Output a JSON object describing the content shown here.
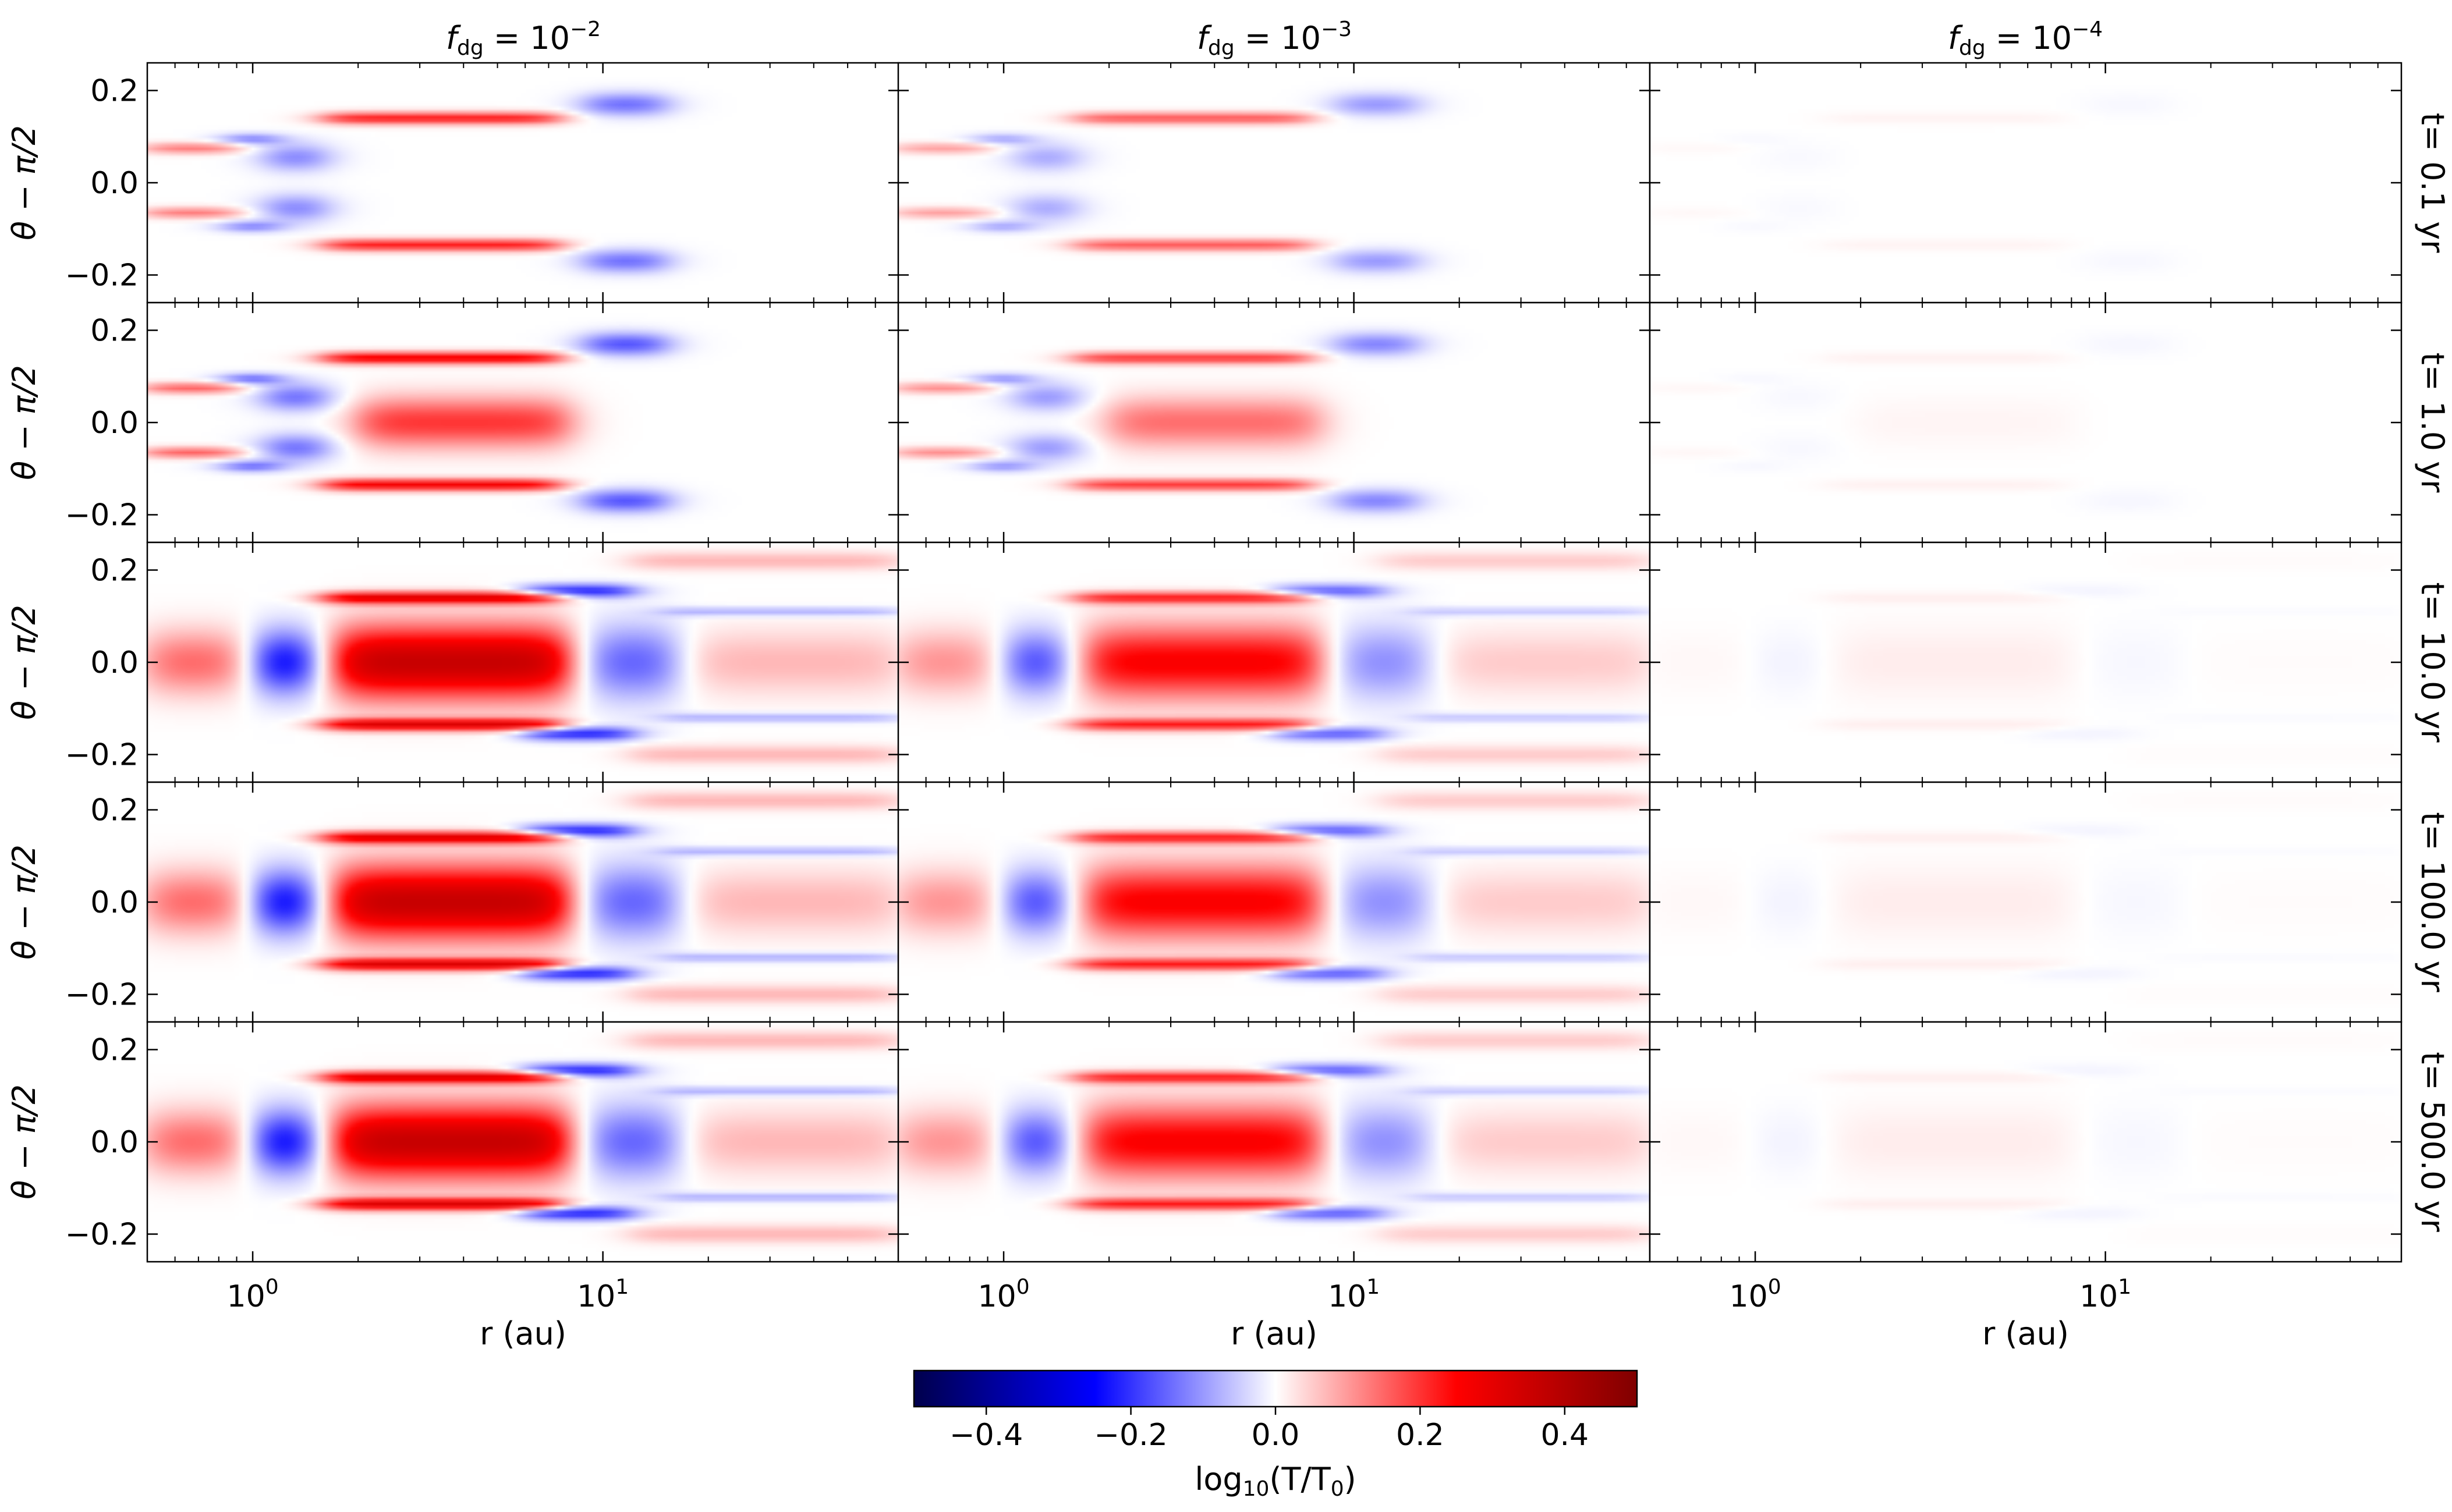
{
  "chart_data": {
    "type": "heatmap",
    "layout": "5 rows x 3 columns grid of log-r vs theta maps sharing axes",
    "columns": [
      {
        "title_base": "f",
        "title_sub": "dg",
        "title_eq": " = 10",
        "title_exp": "−2",
        "fdg": 0.01
      },
      {
        "title_base": "f",
        "title_sub": "dg",
        "title_eq": " = 10",
        "title_exp": "−3",
        "fdg": 0.001
      },
      {
        "title_base": "f",
        "title_sub": "dg",
        "title_eq": " = 10",
        "title_exp": "−4",
        "fdg": 0.0001
      }
    ],
    "rows": [
      {
        "label": "t= 0.1 yr",
        "t_yr": 0.1
      },
      {
        "label": "t= 1.0 yr",
        "t_yr": 1.0
      },
      {
        "label": "t= 10.0 yr",
        "t_yr": 10.0
      },
      {
        "label": "t= 100.0 yr",
        "t_yr": 100.0
      },
      {
        "label": "t= 500.0 yr",
        "t_yr": 500.0
      }
    ],
    "xaxis": {
      "label": "r (au)",
      "scale": "log",
      "range_au": [
        0.5,
        70
      ],
      "major_ticks": [
        {
          "value": 1,
          "base": "10",
          "exp": "0"
        },
        {
          "value": 10,
          "base": "10",
          "exp": "1"
        }
      ]
    },
    "yaxis": {
      "label": "θ − π/2",
      "range": [
        -0.26,
        0.26
      ],
      "ticks": [
        0.2,
        0.0,
        -0.2
      ],
      "tick_labels": [
        "0.2",
        "0.0",
        "−0.2"
      ]
    },
    "colorbar": {
      "cmap": "seismic",
      "range": [
        -0.5,
        0.5
      ],
      "ticks": [
        -0.4,
        -0.2,
        0.0,
        0.2,
        0.4
      ],
      "tick_labels": [
        "−0.4",
        "−0.2",
        "0.0",
        "0.2",
        "0.4"
      ],
      "label_prefix": "log",
      "label_sub": "10",
      "label_body": "(T/T",
      "label_sub2": "0",
      "label_suffix": ")"
    },
    "features_description": "Estimated structures in log10(T/T0): warm (red) bands near the midplane between ~2 and ~9 au and warm surface layers at |theta-pi/2|~0.12-0.15, cool (blue) features near 1-1.5 au and around 10-15 au; amplitudes scale down strongly with f_dg and grow with time.",
    "feature_amplitude_scale": {
      "col_scale": [
        1.0,
        0.72,
        0.05
      ],
      "row_scale": [
        0.75,
        0.9,
        1.0,
        1.0,
        1.0
      ]
    },
    "features": [
      {
        "r0": 0.5,
        "r1": 0.9,
        "th": 0.075,
        "w": 0.012,
        "amp": 0.18,
        "rows": [
          0,
          1
        ]
      },
      {
        "r0": 0.5,
        "r1": 0.9,
        "th": -0.065,
        "w": 0.012,
        "amp": 0.18,
        "rows": [
          0,
          1
        ]
      },
      {
        "r0": 0.85,
        "r1": 1.15,
        "th": 0.095,
        "w": 0.012,
        "amp": -0.2,
        "rows": [
          0,
          1
        ]
      },
      {
        "r0": 0.85,
        "r1": 1.15,
        "th": -0.095,
        "w": 0.012,
        "amp": -0.2,
        "rows": [
          0,
          1
        ]
      },
      {
        "r0": 1.1,
        "r1": 1.6,
        "th": 0.055,
        "w": 0.03,
        "amp": -0.18,
        "rows": [
          0,
          1
        ]
      },
      {
        "r0": 1.1,
        "r1": 1.6,
        "th": -0.055,
        "w": 0.03,
        "amp": -0.18,
        "rows": [
          0,
          1
        ]
      },
      {
        "r0": 1.6,
        "r1": 7.5,
        "th": 0.14,
        "w": 0.013,
        "amp": 0.3,
        "rows": [
          0,
          1,
          2,
          3,
          4
        ]
      },
      {
        "r0": 1.6,
        "r1": 7.5,
        "th": -0.135,
        "w": 0.013,
        "amp": 0.3,
        "rows": [
          0,
          1,
          2,
          3,
          4
        ]
      },
      {
        "r0": 9,
        "r1": 15,
        "th": 0.17,
        "w": 0.025,
        "amp": -0.2,
        "rows": [
          0,
          1
        ]
      },
      {
        "r0": 9,
        "r1": 15,
        "th": -0.17,
        "w": 0.025,
        "amp": -0.2,
        "rows": [
          0,
          1
        ]
      },
      {
        "r0": 2,
        "r1": 8,
        "th": 0.0,
        "w": 0.055,
        "amp": 0.22,
        "rows": [
          1
        ]
      },
      {
        "r0": 0.5,
        "r1": 1.0,
        "th": 0.0,
        "w": 0.07,
        "amp": 0.15,
        "rows": [
          2,
          3,
          4
        ]
      },
      {
        "r0": 1.0,
        "r1": 1.5,
        "th": 0.0,
        "w": 0.07,
        "amp": -0.28,
        "rows": [
          2,
          3,
          4
        ]
      },
      {
        "r0": 1.7,
        "r1": 8.0,
        "th": 0.0,
        "w": 0.08,
        "amp": 0.36,
        "rows": [
          2,
          3,
          4
        ]
      },
      {
        "r0": 9,
        "r1": 16,
        "th": 0.0,
        "w": 0.08,
        "amp": -0.16,
        "rows": [
          2,
          3,
          4
        ]
      },
      {
        "r0": 18,
        "r1": 70,
        "th": 0.0,
        "w": 0.07,
        "amp": 0.07,
        "rows": [
          2,
          3,
          4
        ]
      },
      {
        "r0": 6,
        "r1": 12,
        "th": 0.155,
        "w": 0.015,
        "amp": -0.22,
        "rows": [
          2,
          3,
          4
        ]
      },
      {
        "r0": 6,
        "r1": 12,
        "th": -0.155,
        "w": 0.015,
        "amp": -0.22,
        "rows": [
          2,
          3,
          4
        ]
      },
      {
        "r0": 12,
        "r1": 70,
        "th": 0.22,
        "w": 0.02,
        "amp": 0.07,
        "rows": [
          2,
          3,
          4
        ]
      },
      {
        "r0": 12,
        "r1": 70,
        "th": -0.2,
        "w": 0.02,
        "amp": 0.07,
        "rows": [
          2,
          3,
          4
        ]
      },
      {
        "r0": 15,
        "r1": 70,
        "th": 0.11,
        "w": 0.01,
        "amp": -0.08,
        "rows": [
          2,
          3,
          4
        ]
      },
      {
        "r0": 15,
        "r1": 70,
        "th": -0.12,
        "w": 0.01,
        "amp": -0.08,
        "rows": [
          2,
          3,
          4
        ]
      }
    ]
  }
}
